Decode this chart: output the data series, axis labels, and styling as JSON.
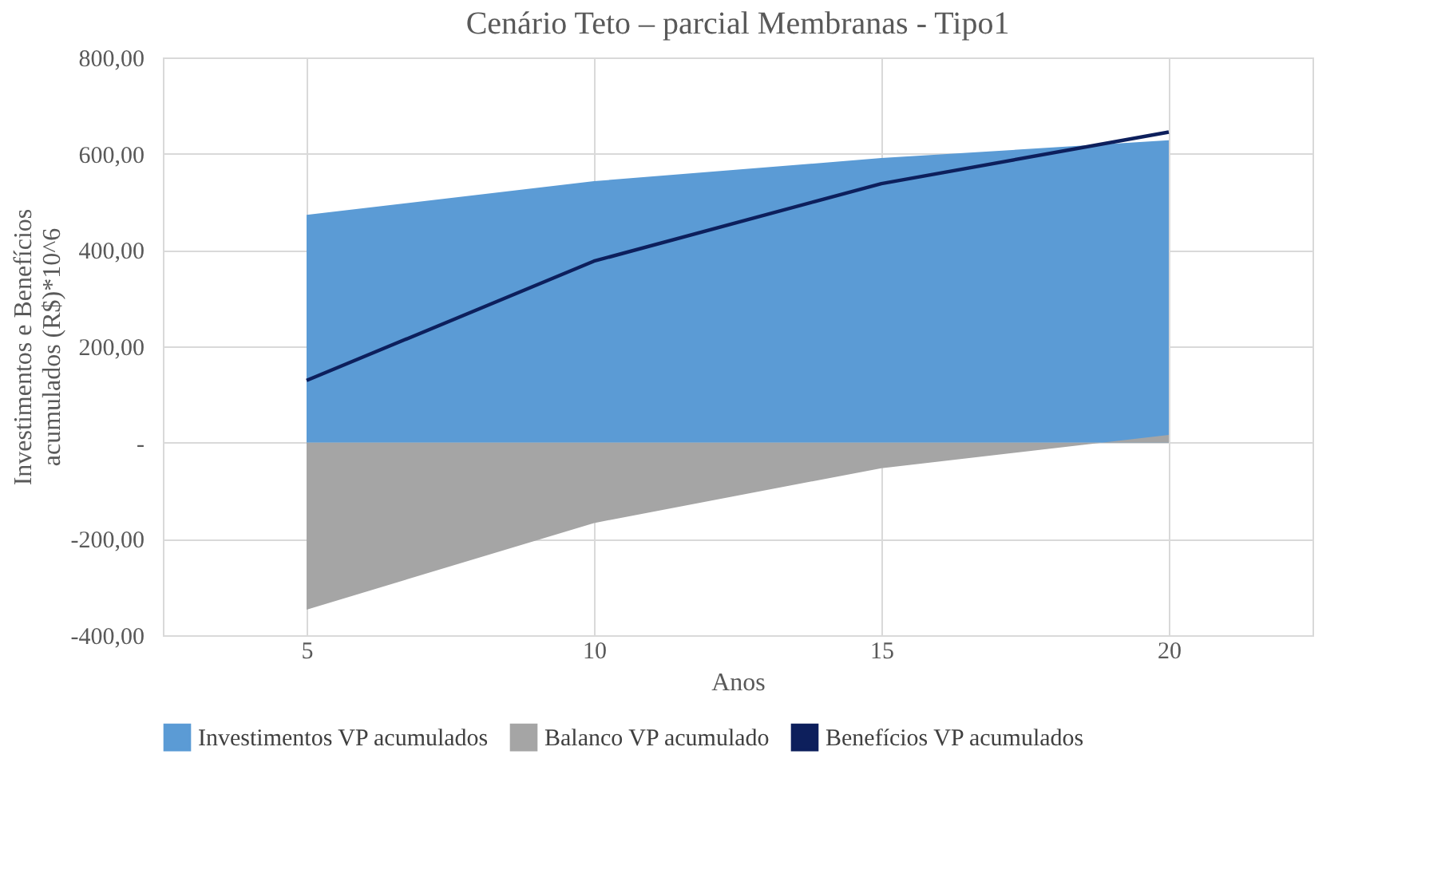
{
  "chart_data": {
    "type": "area",
    "title": "Cenário Teto – parcial Membranas - Tipo1",
    "xlabel": "Anos",
    "ylabel": "Investimentos e Benefícios acumulados (R$)*10^6",
    "categories": [
      "5",
      "10",
      "15",
      "20"
    ],
    "series": [
      {
        "name": "Investimentos VP acumulados",
        "color": "#5b9bd5",
        "values": [
          473,
          543,
          591,
          628
        ]
      },
      {
        "name": "Balanco VP acumulado",
        "color": "#a5a5a5",
        "values": [
          -347,
          -167,
          -53,
          16
        ]
      },
      {
        "name": "Benefícios VP acumulados",
        "type": "line",
        "color": "#0d1f5c",
        "values": [
          129,
          377,
          538,
          645
        ]
      }
    ],
    "ylim": [
      -400,
      800
    ],
    "yticks": [
      {
        "value": -400,
        "label": "-400,00"
      },
      {
        "value": -200,
        "label": "-200,00"
      },
      {
        "value": 0,
        "label": "-"
      },
      {
        "value": 200,
        "label": "200,00"
      },
      {
        "value": 400,
        "label": "400,00"
      },
      {
        "value": 600,
        "label": "600,00"
      },
      {
        "value": 800,
        "label": "800,00"
      }
    ],
    "grid": true,
    "legend": "bottom",
    "line_style": "solid",
    "marker": "none"
  }
}
